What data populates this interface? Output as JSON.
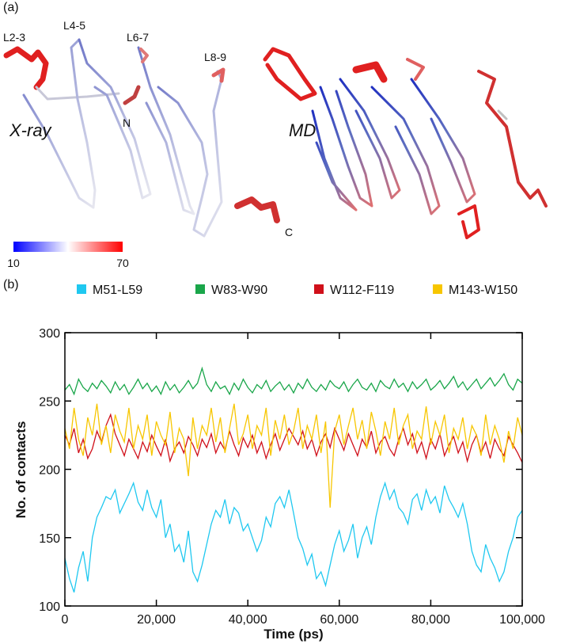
{
  "panel_a": {
    "label": "(a)",
    "loops": [
      "L2-3",
      "L4-5",
      "L6-7",
      "L8-9"
    ],
    "termini": [
      "N",
      "C"
    ],
    "structures": [
      "X-ray",
      "MD"
    ],
    "colorbar": {
      "ticks": [
        10,
        70
      ],
      "colors": [
        "#0000ff",
        "#ffffff",
        "#ff0000"
      ]
    }
  },
  "chart_data": {
    "type": "line",
    "panel_label": "(b)",
    "x_label": "Time (ps)",
    "y_label": "No. of contacts",
    "xlim": [
      0,
      100000
    ],
    "ylim": [
      100,
      300
    ],
    "xticks": [
      0,
      {
        "value": 20000,
        "label": "20,000"
      },
      {
        "value": 40000,
        "label": "40,000"
      },
      {
        "value": 60000,
        "label": "60,000"
      },
      {
        "value": 80000,
        "label": "80,000"
      },
      {
        "value": 100000,
        "label": "100,000"
      }
    ],
    "yticks": [
      100,
      150,
      200,
      250,
      300
    ],
    "x": [
      0,
      1000,
      2000,
      3000,
      4000,
      5000,
      6000,
      7000,
      8000,
      9000,
      10000,
      11000,
      12000,
      13000,
      14000,
      15000,
      16000,
      17000,
      18000,
      19000,
      20000,
      21000,
      22000,
      23000,
      24000,
      25000,
      26000,
      27000,
      28000,
      29000,
      30000,
      31000,
      32000,
      33000,
      34000,
      35000,
      36000,
      37000,
      38000,
      39000,
      40000,
      41000,
      42000,
      43000,
      44000,
      45000,
      46000,
      47000,
      48000,
      49000,
      50000,
      51000,
      52000,
      53000,
      54000,
      55000,
      56000,
      57000,
      58000,
      59000,
      60000,
      61000,
      62000,
      63000,
      64000,
      65000,
      66000,
      67000,
      68000,
      69000,
      70000,
      71000,
      72000,
      73000,
      74000,
      75000,
      76000,
      77000,
      78000,
      79000,
      80000,
      81000,
      82000,
      83000,
      84000,
      85000,
      86000,
      87000,
      88000,
      89000,
      90000,
      91000,
      92000,
      93000,
      94000,
      95000,
      96000,
      97000,
      98000,
      99000,
      100000
    ],
    "series": [
      {
        "name": "M51-L59",
        "color": "#1fc8f0",
        "values": [
          135,
          120,
          110,
          128,
          140,
          118,
          150,
          165,
          172,
          180,
          178,
          185,
          168,
          175,
          182,
          190,
          176,
          170,
          185,
          172,
          165,
          178,
          150,
          160,
          140,
          145,
          132,
          155,
          125,
          118,
          130,
          145,
          160,
          170,
          165,
          178,
          160,
          172,
          168,
          155,
          160,
          150,
          140,
          148,
          165,
          158,
          175,
          180,
          172,
          185,
          168,
          150,
          142,
          130,
          138,
          120,
          125,
          115,
          130,
          145,
          155,
          140,
          148,
          160,
          135,
          150,
          158,
          145,
          165,
          180,
          190,
          178,
          185,
          172,
          168,
          160,
          178,
          182,
          170,
          185,
          175,
          180,
          168,
          188,
          178,
          172,
          165,
          175,
          160,
          140,
          130,
          125,
          145,
          135,
          128,
          118,
          125,
          140,
          150,
          165,
          170
        ]
      },
      {
        "name": "W83-W90",
        "color": "#1aa64a",
        "values": [
          258,
          262,
          255,
          266,
          260,
          257,
          263,
          259,
          265,
          261,
          256,
          264,
          258,
          262,
          255,
          260,
          266,
          259,
          263,
          257,
          261,
          255,
          264,
          258,
          262,
          256,
          260,
          265,
          259,
          263,
          274,
          262,
          257,
          264,
          259,
          261,
          255,
          263,
          258,
          266,
          260,
          256,
          262,
          259,
          265,
          257,
          261,
          264,
          258,
          262,
          256,
          263,
          259,
          266,
          260,
          257,
          262,
          258,
          265,
          261,
          259,
          264,
          257,
          262,
          266,
          260,
          258,
          263,
          257,
          265,
          261,
          259,
          266,
          260,
          263,
          257,
          264,
          259,
          262,
          266,
          258,
          261,
          265,
          259,
          263,
          268,
          260,
          264,
          258,
          262,
          266,
          259,
          263,
          267,
          261,
          265,
          270,
          262,
          258,
          266,
          263
        ]
      },
      {
        "name": "W112-F119",
        "color": "#d0101a",
        "values": [
          225,
          218,
          230,
          212,
          222,
          208,
          215,
          228,
          220,
          232,
          240,
          226,
          218,
          210,
          222,
          215,
          208,
          220,
          213,
          225,
          217,
          210,
          222,
          206,
          215,
          220,
          212,
          224,
          218,
          210,
          222,
          216,
          226,
          212,
          220,
          214,
          228,
          218,
          210,
          223,
          216,
          225,
          212,
          220,
          208,
          218,
          226,
          214,
          222,
          230,
          224,
          218,
          228,
          215,
          222,
          210,
          220,
          226,
          216,
          230,
          222,
          214,
          226,
          218,
          210,
          222,
          216,
          228,
          212,
          220,
          224,
          215,
          210,
          222,
          230,
          218,
          226,
          212,
          220,
          208,
          222,
          215,
          226,
          210,
          218,
          224,
          212,
          220,
          206,
          218,
          225,
          212,
          220,
          208,
          222,
          215,
          210,
          224,
          218,
          212,
          205
        ]
      },
      {
        "name": "M143-W150",
        "color": "#f7c600",
        "values": [
          230,
          215,
          245,
          222,
          210,
          238,
          225,
          248,
          218,
          232,
          212,
          240,
          228,
          220,
          245,
          215,
          232,
          222,
          240,
          210,
          235,
          225,
          218,
          242,
          212,
          230,
          222,
          195,
          238,
          215,
          232,
          225,
          245,
          220,
          238,
          212,
          230,
          248,
          218,
          226,
          240,
          215,
          232,
          225,
          245,
          210,
          236,
          222,
          240,
          218,
          228,
          245,
          215,
          232,
          222,
          240,
          212,
          235,
          172,
          228,
          240,
          218,
          232,
          245,
          222,
          236,
          215,
          242,
          228,
          210,
          235,
          222,
          245,
          218,
          232,
          240,
          215,
          228,
          222,
          246,
          218,
          235,
          225,
          240,
          212,
          230,
          222,
          238,
          215,
          232,
          225,
          210,
          240,
          218,
          232,
          222,
          205,
          228,
          215,
          238,
          225
        ]
      }
    ]
  }
}
